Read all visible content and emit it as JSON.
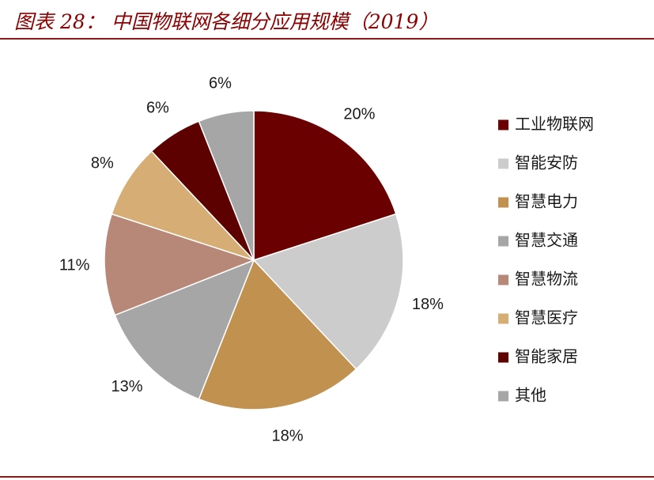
{
  "figure_title": "图表 28：  中国物联网各细分应用规模（2019）",
  "chart_data": {
    "type": "pie",
    "title": "",
    "start_angle_deg": 0,
    "direction": "clockwise",
    "legend_position": "right",
    "slices": [
      {
        "name": "工业物联网",
        "value": 20,
        "label": "20%",
        "color": "#6b0000"
      },
      {
        "name": "智能安防",
        "value": 18,
        "label": "18%",
        "color": "#cccccc"
      },
      {
        "name": "智慧电力",
        "value": 18,
        "label": "18%",
        "color": "#c0914f"
      },
      {
        "name": "智慧交通",
        "value": 13,
        "label": "13%",
        "color": "#a6a6a6"
      },
      {
        "name": "智慧物流",
        "value": 11,
        "label": "11%",
        "color": "#b78878"
      },
      {
        "name": "智慧医疗",
        "value": 8,
        "label": "8%",
        "color": "#d6ad74"
      },
      {
        "name": "智能家居",
        "value": 6,
        "label": "6%",
        "color": "#5c0000"
      },
      {
        "name": "其他",
        "value": 6,
        "label": "6%",
        "color": "#a6a6a6"
      }
    ]
  }
}
